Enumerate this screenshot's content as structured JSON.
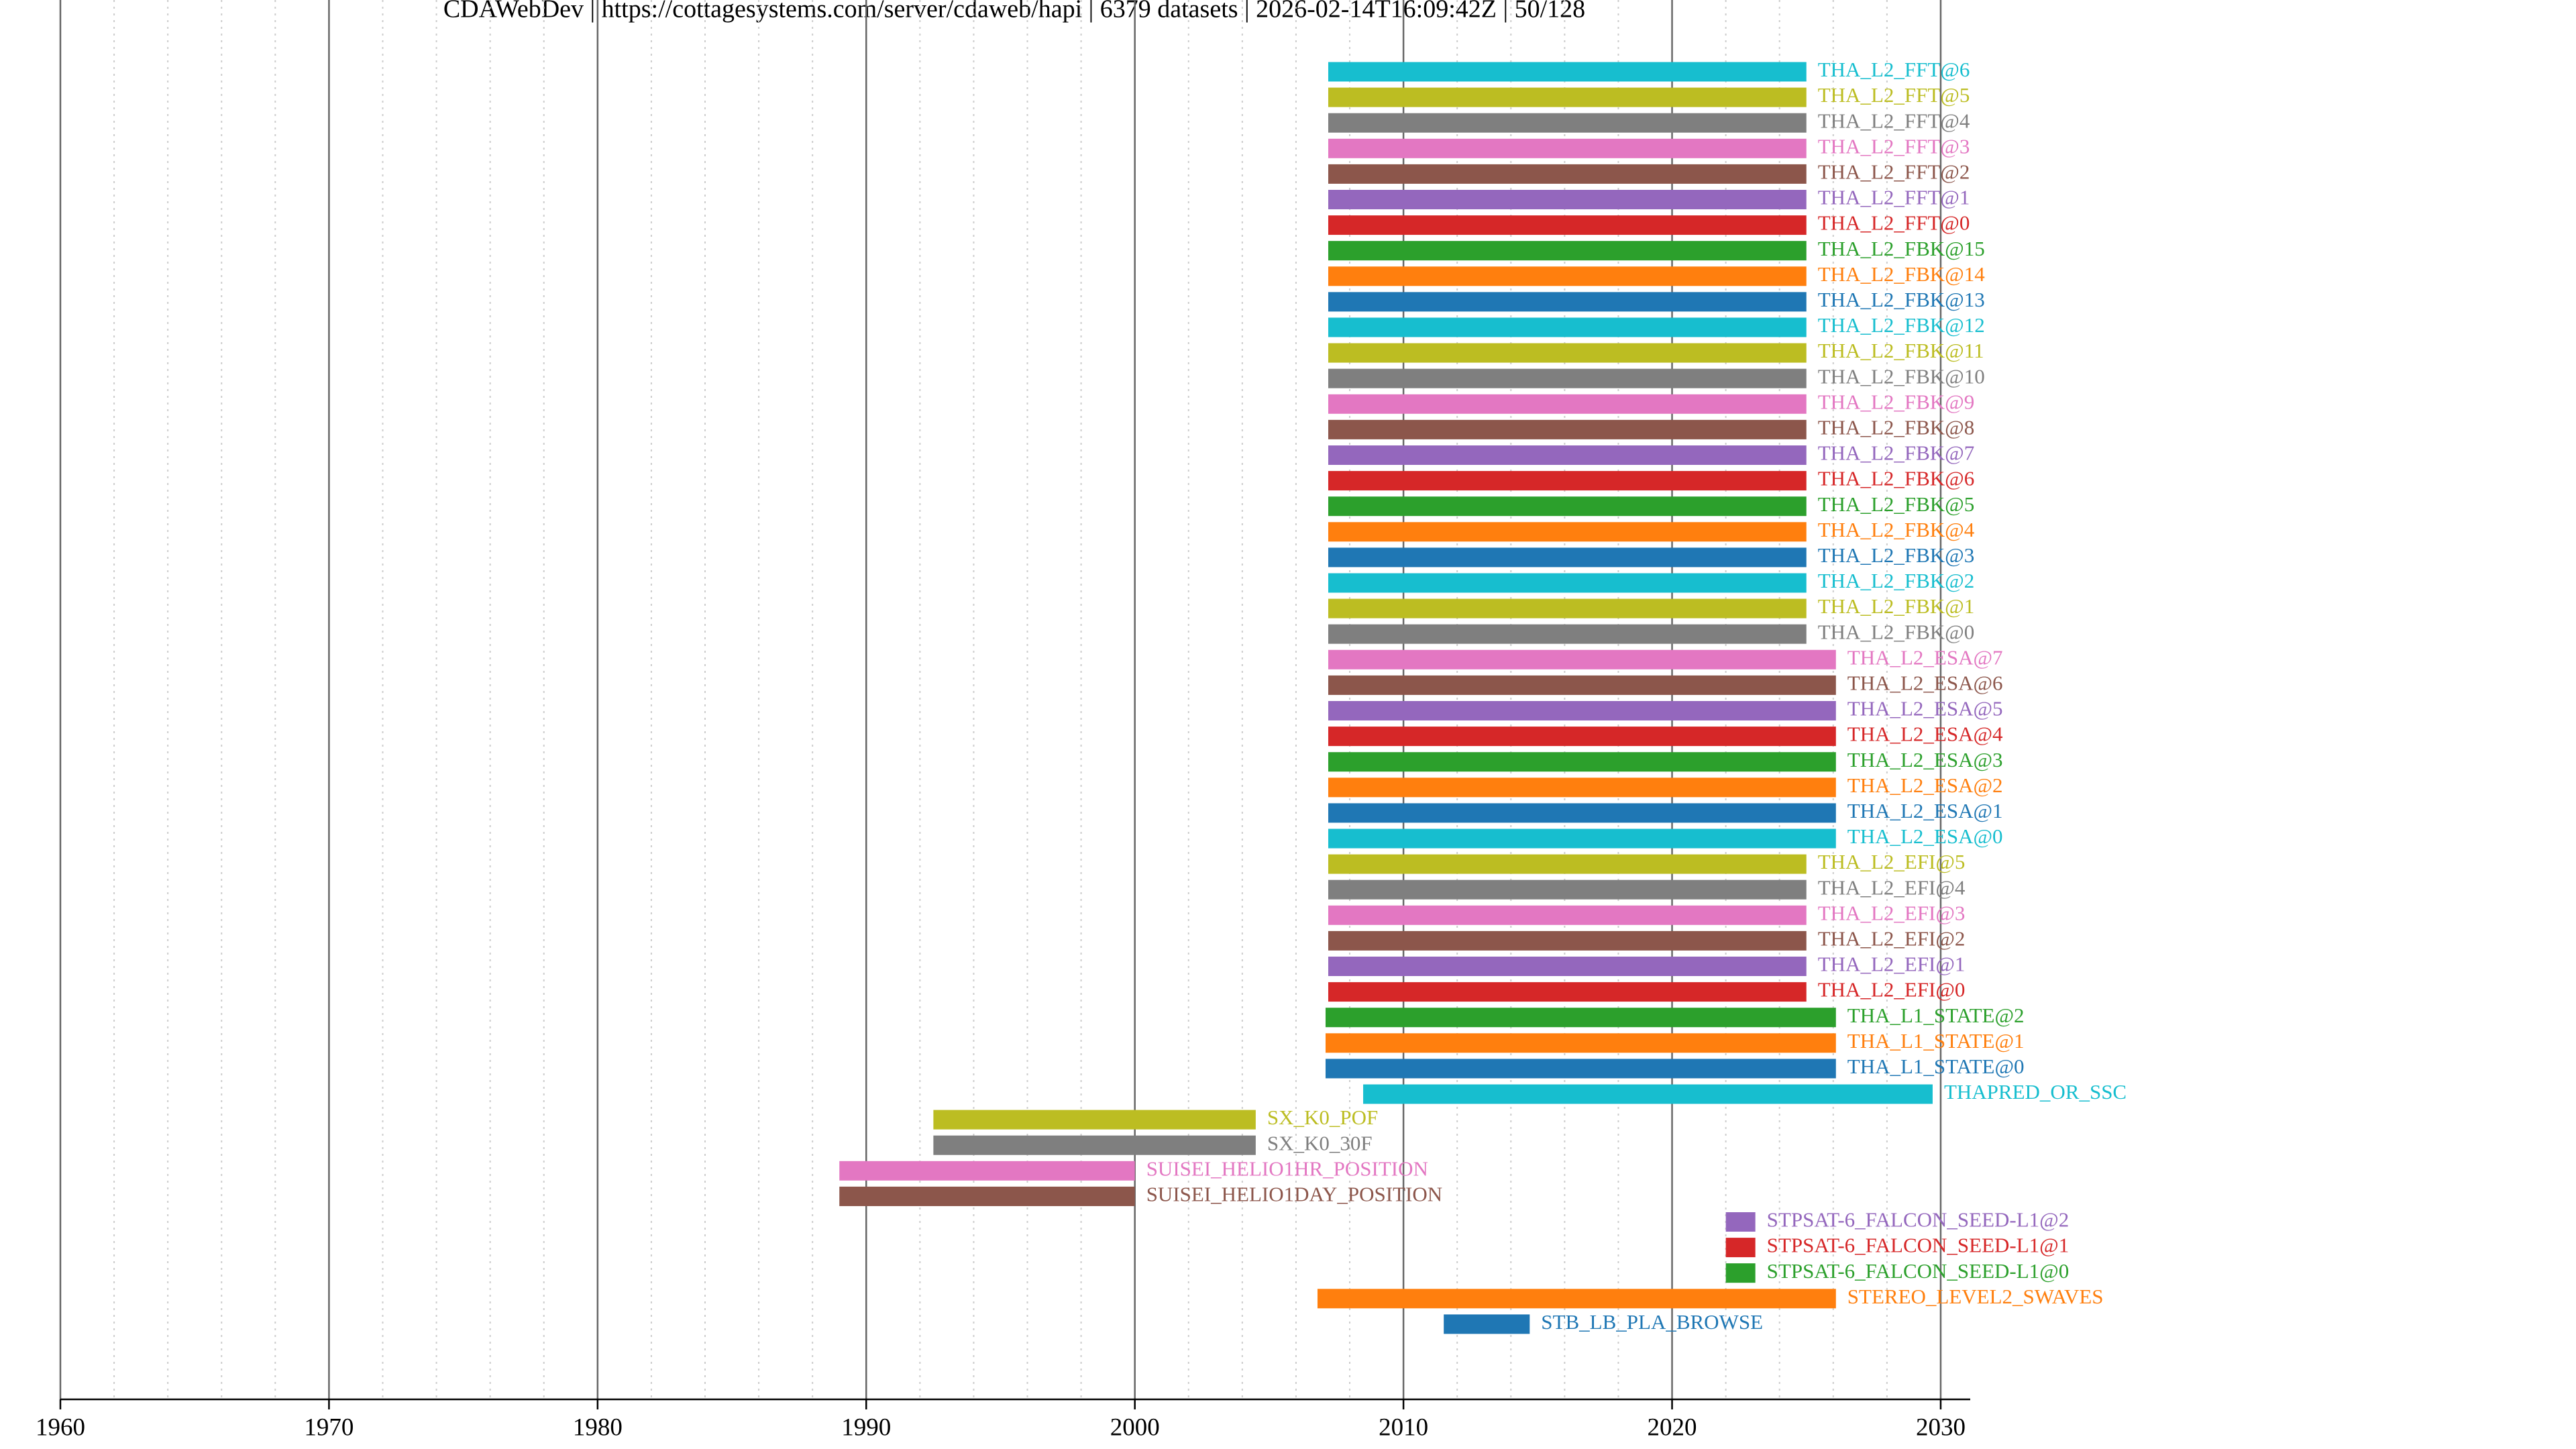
{
  "chart_data": {
    "type": "timeline",
    "title": "CDAWebDev | https://cottagesystems.com/server/cdaweb/hapi | 6379 datasets | 2026-02-14T16:09:42Z | 50/128",
    "categories": [
      "THA_L2_FFT@6",
      "THA_L2_FFT@5",
      "THA_L2_FFT@4",
      "THA_L2_FFT@3",
      "THA_L2_FFT@2",
      "THA_L2_FFT@1",
      "THA_L2_FFT@0",
      "THA_L2_FBK@15",
      "THA_L2_FBK@14",
      "THA_L2_FBK@13",
      "THA_L2_FBK@12",
      "THA_L2_FBK@11",
      "THA_L2_FBK@10",
      "THA_L2_FBK@9",
      "THA_L2_FBK@8",
      "THA_L2_FBK@7",
      "THA_L2_FBK@6",
      "THA_L2_FBK@5",
      "THA_L2_FBK@4",
      "THA_L2_FBK@3",
      "THA_L2_FBK@2",
      "THA_L2_FBK@1",
      "THA_L2_FBK@0",
      "THA_L2_ESA@7",
      "THA_L2_ESA@6",
      "THA_L2_ESA@5",
      "THA_L2_ESA@4",
      "THA_L2_ESA@3",
      "THA_L2_ESA@2",
      "THA_L2_ESA@1",
      "THA_L2_ESA@0",
      "THA_L2_EFI@5",
      "THA_L2_EFI@4",
      "THA_L2_EFI@3",
      "THA_L2_EFI@2",
      "THA_L2_EFI@1",
      "THA_L2_EFI@0",
      "THA_L1_STATE@2",
      "THA_L1_STATE@1",
      "THA_L1_STATE@0",
      "THAPRED_OR_SSC",
      "SX_K0_POF",
      "SX_K0_30F",
      "SUISEI_HELIO1HR_POSITION",
      "SUISEI_HELIO1DAY_POSITION",
      "STPSAT-6_FALCON_SEED-L1@2",
      "STPSAT-6_FALCON_SEED-L1@1",
      "STPSAT-6_FALCON_SEED-L1@0",
      "STEREO_LEVEL2_SWAVES",
      "STB_LB_PLA_BROWSE"
    ],
    "start": [
      2007.2,
      2007.2,
      2007.2,
      2007.2,
      2007.2,
      2007.2,
      2007.2,
      2007.2,
      2007.2,
      2007.2,
      2007.2,
      2007.2,
      2007.2,
      2007.2,
      2007.2,
      2007.2,
      2007.2,
      2007.2,
      2007.2,
      2007.2,
      2007.2,
      2007.2,
      2007.2,
      2007.2,
      2007.2,
      2007.2,
      2007.2,
      2007.2,
      2007.2,
      2007.2,
      2007.2,
      2007.2,
      2007.2,
      2007.2,
      2007.2,
      2007.2,
      2007.2,
      2007.1,
      2007.1,
      2007.1,
      2008.5,
      1992.5,
      1992.5,
      1989.0,
      1989.0,
      2022.0,
      2022.0,
      2022.0,
      2006.8,
      2011.5
    ],
    "end": [
      2025.0,
      2025.0,
      2025.0,
      2025.0,
      2025.0,
      2025.0,
      2025.0,
      2025.0,
      2025.0,
      2025.0,
      2025.0,
      2025.0,
      2025.0,
      2025.0,
      2025.0,
      2025.0,
      2025.0,
      2025.0,
      2025.0,
      2025.0,
      2025.0,
      2025.0,
      2025.0,
      2026.1,
      2026.1,
      2026.1,
      2026.1,
      2026.1,
      2026.1,
      2026.1,
      2026.1,
      2025.0,
      2025.0,
      2025.0,
      2025.0,
      2025.0,
      2025.0,
      2026.1,
      2026.1,
      2026.1,
      2029.7,
      2004.5,
      2004.5,
      2000.0,
      2000.0,
      2023.1,
      2023.1,
      2023.1,
      2026.1,
      2014.7
    ],
    "palette": [
      "#1f77b4",
      "#ff7f0e",
      "#2ca02c",
      "#d62728",
      "#9467bd",
      "#8c564b",
      "#e377c2",
      "#7f7f7f",
      "#bcbd22",
      "#17becf"
    ],
    "xlim": [
      1960,
      2031.1
    ],
    "xticks": [
      1960,
      1970,
      1980,
      1990,
      2000,
      2010,
      2020,
      2030
    ],
    "grid": true
  }
}
